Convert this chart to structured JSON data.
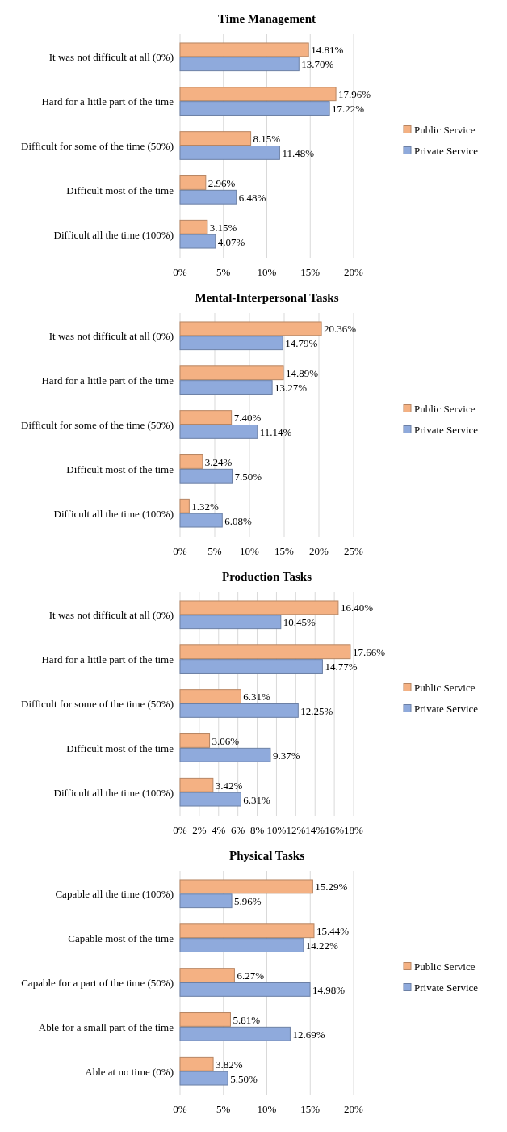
{
  "chart_data": [
    {
      "type": "bar",
      "orientation": "horizontal",
      "title": "Time Management",
      "categories": [
        "It was not difficult at all (0%)",
        "Hard for a little part of the time",
        "Difficult for some of the time (50%)",
        "Difficult most of the time",
        "Difficult all the time (100%)"
      ],
      "series": [
        {
          "name": "Public Service",
          "color": "#f4b183",
          "values": [
            14.81,
            17.96,
            8.15,
            2.96,
            3.15
          ],
          "value_labels": [
            "14.81%",
            "17.96%",
            "8.15%",
            "2.96%",
            "3.15%"
          ]
        },
        {
          "name": "Private Service",
          "color": "#8faadc",
          "values": [
            13.7,
            17.22,
            11.48,
            6.48,
            4.07
          ],
          "value_labels": [
            "13.70%",
            "17.22%",
            "11.48%",
            "6.48%",
            "4.07%"
          ]
        }
      ],
      "xlim": [
        0,
        20
      ],
      "xticks": [
        {
          "value": 0,
          "label": "0%"
        },
        {
          "value": 5,
          "label": "5%"
        },
        {
          "value": 10,
          "label": "10%"
        },
        {
          "value": 15,
          "label": "15%"
        },
        {
          "value": 20,
          "label": "20%"
        }
      ],
      "grid": "x",
      "legend": "right"
    },
    {
      "type": "bar",
      "orientation": "horizontal",
      "title": "Mental-Interpersonal Tasks",
      "categories": [
        "It was not difficult at all (0%)",
        "Hard for a little part of the time",
        "Difficult for some of the time (50%)",
        "Difficult most of the time",
        "Difficult all the time (100%)"
      ],
      "series": [
        {
          "name": "Public Service",
          "color": "#f4b183",
          "values": [
            20.36,
            14.89,
            7.4,
            3.24,
            1.32
          ],
          "value_labels": [
            "20.36%",
            "14.89%",
            "7.40%",
            "3.24%",
            "1.32%"
          ]
        },
        {
          "name": "Private Service",
          "color": "#8faadc",
          "values": [
            14.79,
            13.27,
            11.14,
            7.5,
            6.08
          ],
          "value_labels": [
            "14.79%",
            "13.27%",
            "11.14%",
            "7.50%",
            "6.08%"
          ]
        }
      ],
      "xlim": [
        0,
        25
      ],
      "xticks": [
        {
          "value": 0,
          "label": "0%"
        },
        {
          "value": 5,
          "label": "5%"
        },
        {
          "value": 10,
          "label": "10%"
        },
        {
          "value": 15,
          "label": "15%"
        },
        {
          "value": 20,
          "label": "20%"
        },
        {
          "value": 25,
          "label": "25%"
        }
      ],
      "grid": "x",
      "legend": "right"
    },
    {
      "type": "bar",
      "orientation": "horizontal",
      "title": "Production Tasks",
      "categories": [
        "It was not difficult at all (0%)",
        "Hard for a little part of the time",
        "Difficult for some of the time (50%)",
        "Difficult most of the time",
        "Difficult all the time (100%)"
      ],
      "series": [
        {
          "name": "Public Service",
          "color": "#f4b183",
          "values": [
            16.4,
            17.66,
            6.31,
            3.06,
            3.42
          ],
          "value_labels": [
            "16.40%",
            "17.66%",
            "6.31%",
            "3.06%",
            "3.42%"
          ]
        },
        {
          "name": "Private Service",
          "color": "#8faadc",
          "values": [
            10.45,
            14.77,
            12.25,
            9.37,
            6.31
          ],
          "value_labels": [
            "10.45%",
            "14.77%",
            "12.25%",
            "9.37%",
            "6.31%"
          ]
        }
      ],
      "xlim": [
        0,
        18
      ],
      "xticks": [
        {
          "value": 0,
          "label": "0%"
        },
        {
          "value": 2,
          "label": "2%"
        },
        {
          "value": 4,
          "label": "4%"
        },
        {
          "value": 6,
          "label": "6%"
        },
        {
          "value": 8,
          "label": "8%"
        },
        {
          "value": 10,
          "label": "10%"
        },
        {
          "value": 12,
          "label": "12%"
        },
        {
          "value": 14,
          "label": "14%"
        },
        {
          "value": 16,
          "label": "16%"
        },
        {
          "value": 18,
          "label": "18%"
        }
      ],
      "grid": "x",
      "legend": "right"
    },
    {
      "type": "bar",
      "orientation": "horizontal",
      "title": "Physical Tasks",
      "categories": [
        "Capable all the time (100%)",
        "Capable most of the time",
        "Capable for a part of the time (50%)",
        "Able for a small part of the time",
        "Able at no time (0%)"
      ],
      "series": [
        {
          "name": "Public Service",
          "color": "#f4b183",
          "values": [
            15.29,
            15.44,
            6.27,
            5.81,
            3.82
          ],
          "value_labels": [
            "15.29%",
            "15.44%",
            "6.27%",
            "5.81%",
            "3.82%"
          ]
        },
        {
          "name": "Private Service",
          "color": "#8faadc",
          "values": [
            5.96,
            14.22,
            14.98,
            12.69,
            5.5
          ],
          "value_labels": [
            "5.96%",
            "14.22%",
            "14.98%",
            "12.69%",
            "5.50%"
          ]
        }
      ],
      "xlim": [
        0,
        20
      ],
      "xticks": [
        {
          "value": 0,
          "label": "0%"
        },
        {
          "value": 5,
          "label": "5%"
        },
        {
          "value": 10,
          "label": "10%"
        },
        {
          "value": 15,
          "label": "15%"
        },
        {
          "value": 20,
          "label": "20%"
        }
      ],
      "grid": "x",
      "legend": "right"
    }
  ]
}
